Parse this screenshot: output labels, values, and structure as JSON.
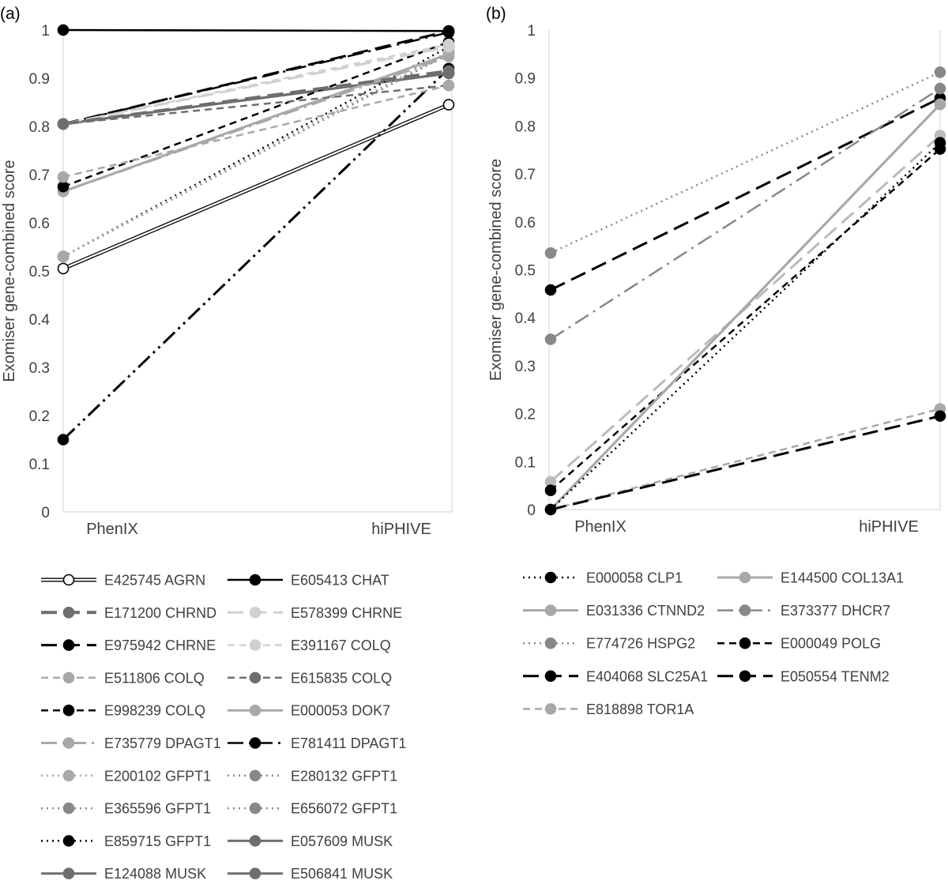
{
  "chart_data": [
    {
      "panel_label": "(a)",
      "type": "line",
      "categories": [
        "PhenIX",
        "hiPHIVE"
      ],
      "ylabel": "Exomiser gene-combined score",
      "ylim": [
        0,
        1
      ],
      "yticks": [
        "0",
        "0.1",
        "0.2",
        "0.3",
        "0.4",
        "0.5",
        "0.6",
        "0.7",
        "0.8",
        "0.9",
        "1"
      ],
      "grid": "vertical",
      "legend": "bottom",
      "series": [
        {
          "name": "E425745 AGRN",
          "values": [
            0.505,
            0.845
          ],
          "color": "#000000",
          "dash": "double",
          "width": 1.5,
          "marker": "#ffffff"
        },
        {
          "name": "E605413 CHAT",
          "values": [
            1.0,
            0.998
          ],
          "color": "#000000",
          "dash": "solid",
          "width": 2.5,
          "marker": "#000000"
        },
        {
          "name": "E171200 CHRND",
          "values": [
            0.805,
            0.915
          ],
          "color": "#6e6e6e",
          "dash": "longdash",
          "width": 4,
          "marker": "#6e6e6e"
        },
        {
          "name": "E578399 CHRNE",
          "values": [
            0.805,
            0.965
          ],
          "color": "#d0d0d0",
          "dash": "longdash",
          "width": 3,
          "marker": "#d0d0d0"
        },
        {
          "name": "E975942 CHRNE",
          "values": [
            0.805,
            0.998
          ],
          "color": "#000000",
          "dash": "longdash",
          "width": 3,
          "marker": "#000000"
        },
        {
          "name": "E391167 COLQ",
          "values": [
            0.805,
            0.97
          ],
          "color": "#d0d0d0",
          "dash": "dash",
          "width": 2.5,
          "marker": "#d0d0d0"
        },
        {
          "name": "E511806 COLQ",
          "values": [
            0.695,
            0.885
          ],
          "color": "#a8a8a8",
          "dash": "dash",
          "width": 2.5,
          "marker": "#a8a8a8"
        },
        {
          "name": "E615835 COLQ",
          "values": [
            0.805,
            0.885
          ],
          "color": "#6e6e6e",
          "dash": "dash",
          "width": 2.5,
          "marker": "#6e6e6e"
        },
        {
          "name": "E998239 COLQ",
          "values": [
            0.675,
            0.975
          ],
          "color": "#000000",
          "dash": "dash",
          "width": 2.5,
          "marker": "#000000"
        },
        {
          "name": "E000053 DOK7",
          "values": [
            0.665,
            0.95
          ],
          "color": "#a8a8a8",
          "dash": "solid",
          "width": 3,
          "marker": "#a8a8a8"
        },
        {
          "name": "E735779 DPAGT1",
          "values": [
            0.665,
            0.945
          ],
          "color": "#a8a8a8",
          "dash": "dashdot",
          "width": 3,
          "marker": "#a8a8a8"
        },
        {
          "name": "E781411 DPAGT1",
          "values": [
            0.805,
            0.995
          ],
          "color": "#000000",
          "dash": "dashdot",
          "width": 2.5,
          "marker": "#000000"
        },
        {
          "name": "E200102 GFPT1",
          "values": [
            0.53,
            0.955
          ],
          "color": "#a8a8a8",
          "dash": "dot",
          "width": 2.5,
          "marker": "#a8a8a8"
        },
        {
          "name": "E280132 GFPT1",
          "values": [
            0.53,
            0.955
          ],
          "color": "#888888",
          "dash": "dot",
          "width": 2.5,
          "marker": "#888888"
        },
        {
          "name": "E365596 GFPT1",
          "values": [
            0.53,
            0.95
          ],
          "color": "#888888",
          "dash": "dot",
          "width": 2.5,
          "marker": "#888888"
        },
        {
          "name": "E656072 GFPT1",
          "values": [
            0.53,
            0.95
          ],
          "color": "#888888",
          "dash": "dot",
          "width": 2.5,
          "marker": "#888888"
        },
        {
          "name": "E859715 GFPT1",
          "values": [
            0.53,
            0.965
          ],
          "color": "#000000",
          "dash": "dot",
          "width": 2.5,
          "marker": "#000000"
        },
        {
          "name": "E057609 MUSK",
          "values": [
            0.805,
            0.91
          ],
          "color": "#6e6e6e",
          "dash": "solid",
          "width": 3,
          "marker": "#6e6e6e"
        },
        {
          "name": "E124088 MUSK",
          "values": [
            0.805,
            0.91
          ],
          "color": "#6e6e6e",
          "dash": "solid",
          "width": 3,
          "marker": "#6e6e6e"
        },
        {
          "name": "E506841 MUSK",
          "values": [
            0.805,
            0.91
          ],
          "color": "#6e6e6e",
          "dash": "solid",
          "width": 3,
          "marker": "#6e6e6e"
        },
        {
          "name": "",
          "values": [
            0.15,
            0.92
          ],
          "color": "#000000",
          "dash": "dashdotdot",
          "width": 3,
          "marker": "#000000"
        }
      ]
    },
    {
      "panel_label": "(b)",
      "type": "line",
      "categories": [
        "PhenIX",
        "hiPHIVE"
      ],
      "ylabel": "Exomiser gene-combined score",
      "ylim": [
        0,
        1
      ],
      "yticks": [
        "0",
        "0.1",
        "0.2",
        "0.3",
        "0.4",
        "0.5",
        "0.6",
        "0.7",
        "0.8",
        "0.9",
        "1"
      ],
      "grid": "vertical",
      "legend": "bottom",
      "series": [
        {
          "name": "E000058 CLP1",
          "values": [
            0.0,
            0.765
          ],
          "color": "#000000",
          "dash": "dot",
          "width": 2.5,
          "marker": "#000000"
        },
        {
          "name": "E144500 COL13A1",
          "values": [
            0.0,
            0.845
          ],
          "color": "#a8a8a8",
          "dash": "solid",
          "width": 3,
          "marker": "#a8a8a8"
        },
        {
          "name": "E031336 CTNND2",
          "values": [
            0.0,
            0.845
          ],
          "color": "#a8a8a8",
          "dash": "solid",
          "width": 3,
          "marker": "#a8a8a8"
        },
        {
          "name": "E373377 DHCR7",
          "values": [
            0.355,
            0.878
          ],
          "color": "#888888",
          "dash": "dashdot",
          "width": 2.5,
          "marker": "#888888"
        },
        {
          "name": "E774726 HSPG2",
          "values": [
            0.535,
            0.912
          ],
          "color": "#888888",
          "dash": "dot",
          "width": 2.5,
          "marker": "#888888"
        },
        {
          "name": "E000049 POLG",
          "values": [
            0.04,
            0.752
          ],
          "color": "#000000",
          "dash": "dash",
          "width": 2.5,
          "marker": "#000000"
        },
        {
          "name": "E404068 SLC25A1",
          "values": [
            0.458,
            0.858
          ],
          "color": "#000000",
          "dash": "longdash",
          "width": 3,
          "marker": "#000000"
        },
        {
          "name": "E050554 TENM2",
          "values": [
            0.0,
            0.195
          ],
          "color": "#000000",
          "dash": "longdash",
          "width": 3,
          "marker": "#000000"
        },
        {
          "name": "E818898 TOR1A",
          "values": [
            0.0,
            0.21
          ],
          "color": "#a8a8a8",
          "dash": "dash",
          "width": 2.5,
          "marker": "#a8a8a8"
        },
        {
          "name": "",
          "values": [
            0.058,
            0.78
          ],
          "color": "#bbbbbb",
          "dash": "longdash",
          "width": 3,
          "marker": "#bbbbbb"
        }
      ]
    }
  ]
}
